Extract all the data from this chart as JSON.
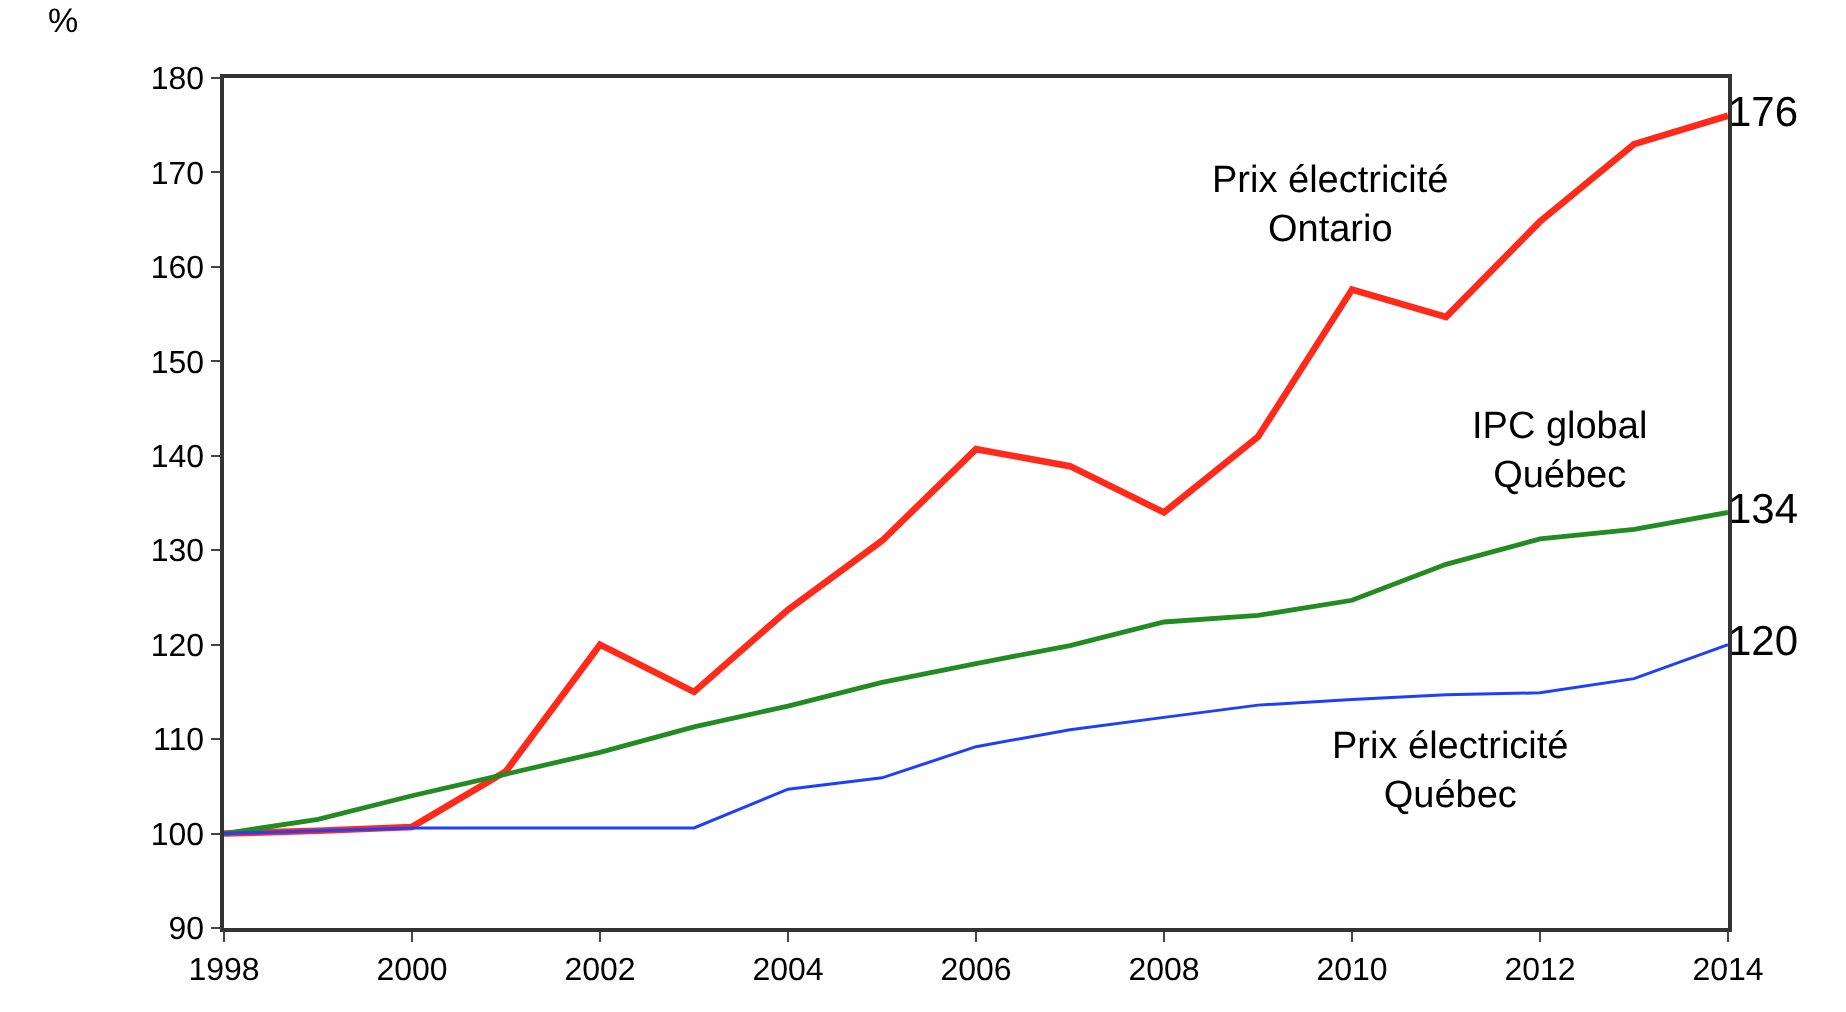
{
  "chart_data": {
    "type": "line",
    "ylabel": "%",
    "x": [
      1998,
      1999,
      2000,
      2001,
      2002,
      2003,
      2004,
      2005,
      2006,
      2007,
      2008,
      2009,
      2010,
      2011,
      2012,
      2013,
      2014
    ],
    "series": [
      {
        "name": "Prix électricité Ontario",
        "color": "#ff2a1a",
        "values": [
          100,
          100.3,
          100.7,
          106.6,
          120,
          115,
          123.7,
          131,
          140.7,
          138.9,
          134,
          142,
          157.6,
          154.7,
          164.8,
          173,
          176
        ],
        "value_labels": [
          null,
          null,
          null,
          null,
          null,
          null,
          null,
          null,
          null,
          null,
          null,
          null,
          null,
          null,
          null,
          null,
          "176"
        ]
      },
      {
        "name": "IPC global Québec",
        "color": "#228b22",
        "values": [
          100,
          101.5,
          104,
          106.3,
          108.6,
          111.3,
          113.5,
          116,
          118,
          119.9,
          122.4,
          123.1,
          124.7,
          128.5,
          131.2,
          132.2,
          134
        ],
        "value_labels": [
          null,
          null,
          null,
          null,
          null,
          null,
          null,
          null,
          null,
          null,
          null,
          null,
          null,
          null,
          null,
          null,
          "134"
        ]
      },
      {
        "name": "Prix électricité Québec",
        "color": "#1f3fff",
        "values": [
          100,
          100.3,
          100.6,
          100.6,
          100.6,
          100.6,
          104.7,
          105.9,
          109.2,
          111,
          112.3,
          113.6,
          114.2,
          114.7,
          114.9,
          116.4,
          120
        ],
        "value_labels": [
          null,
          null,
          null,
          null,
          null,
          null,
          null,
          null,
          null,
          null,
          null,
          null,
          null,
          null,
          null,
          null,
          "120"
        ]
      }
    ],
    "xlim": [
      1998,
      2014
    ],
    "xticks": [
      1998,
      2000,
      2002,
      2004,
      2006,
      2008,
      2010,
      2012,
      2014
    ],
    "ylim": [
      90,
      180
    ],
    "yticks": [
      90,
      100,
      110,
      120,
      130,
      140,
      150,
      160,
      170,
      180
    ],
    "grid": false,
    "legend": false,
    "marker": "none",
    "line_style": "solid"
  }
}
